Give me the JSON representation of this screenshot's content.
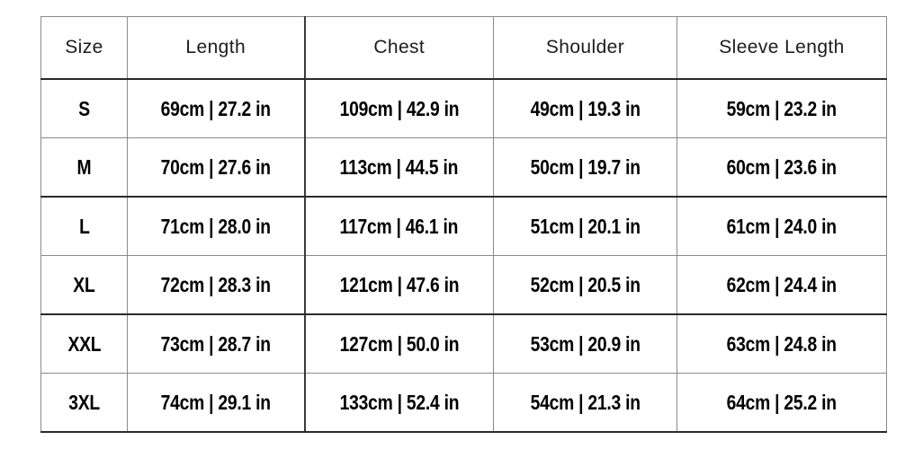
{
  "chart_data": {
    "type": "table",
    "columns": [
      "Size",
      "Length",
      "Chest",
      "Shoulder",
      "Sleeve Length"
    ],
    "rows": [
      [
        "S",
        "69cm | 27.2 in",
        "109cm | 42.9 in",
        "49cm | 19.3 in",
        "59cm | 23.2 in"
      ],
      [
        "M",
        "70cm | 27.6 in",
        "113cm | 44.5 in",
        "50cm | 19.7 in",
        "60cm | 23.6 in"
      ],
      [
        "L",
        "71cm | 28.0 in",
        "117cm | 46.1 in",
        "51cm | 20.1 in",
        "61cm | 24.0 in"
      ],
      [
        "XL",
        "72cm | 28.3 in",
        "121cm | 47.6 in",
        "52cm | 20.5 in",
        "62cm | 24.4 in"
      ],
      [
        "XXL",
        "73cm | 28.7 in",
        "127cm | 50.0 in",
        "53cm | 20.9 in",
        "63cm | 24.8 in"
      ],
      [
        "3XL",
        "74cm | 29.1 in",
        "133cm | 52.4 in",
        "54cm | 21.3 in",
        "64cm | 25.2 in"
      ]
    ],
    "layout": {
      "grid": "on",
      "units": "cm and inches"
    }
  },
  "colors": {
    "background": "#ffffff",
    "grid_gray": "#8a8a8a",
    "grid_dark": "#2a2a2a",
    "header_text": "#1c1c1c",
    "cell_text": "#000000"
  }
}
